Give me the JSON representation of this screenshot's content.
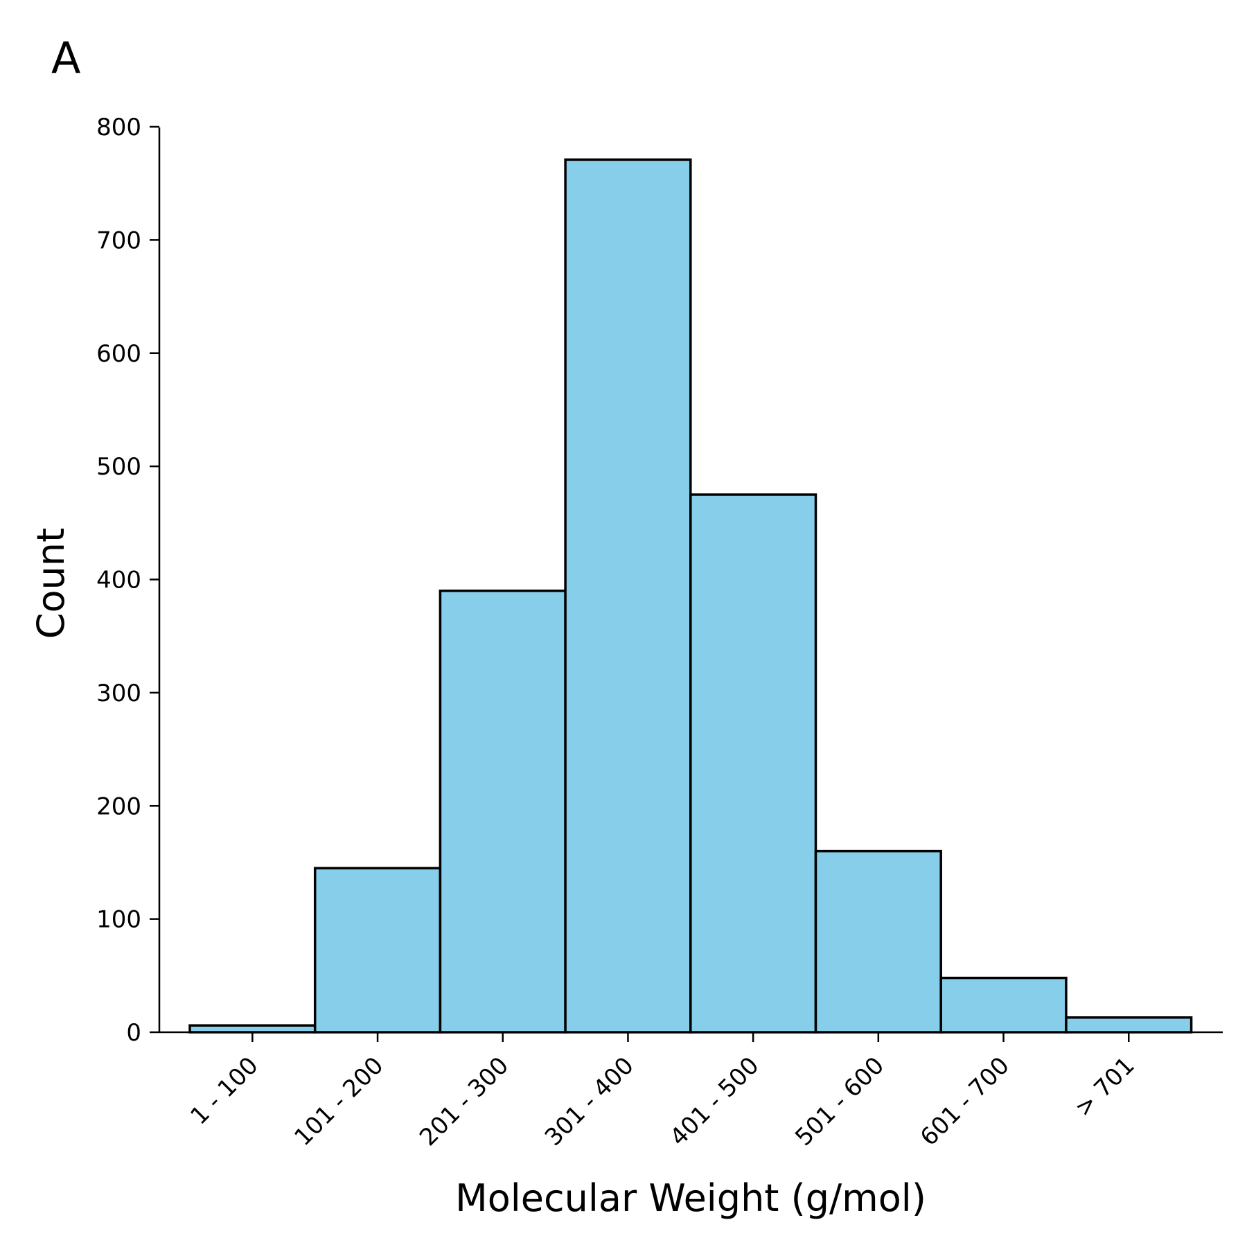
{
  "panel_label": "A",
  "colors": {
    "bar_fill": "#87ceeb",
    "bar_edge": "#000000",
    "axis": "#000000",
    "background": "#ffffff"
  },
  "chart_data": {
    "type": "bar",
    "title": "",
    "xlabel": "Molecular Weight (g/mol)",
    "ylabel": "Count",
    "categories": [
      "1 - 100",
      "101 - 200",
      "201 - 300",
      "301 - 400",
      "401 - 500",
      "501 - 600",
      "601 - 700",
      "> 701"
    ],
    "values": [
      6,
      145,
      390,
      771,
      475,
      160,
      48,
      13
    ],
    "ylim": [
      0,
      808
    ],
    "yticks": [
      0,
      100,
      200,
      300,
      400,
      500,
      600,
      700,
      800
    ],
    "grid": false,
    "legend": "none"
  }
}
